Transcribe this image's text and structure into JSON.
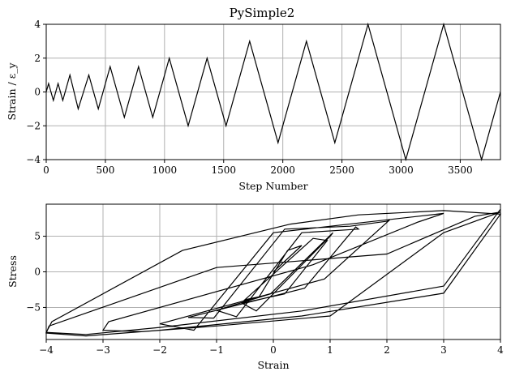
{
  "chart_data": [
    {
      "type": "line",
      "title": "PySimple2",
      "xlabel": "Step Number",
      "ylabel": "Strain / ε_y",
      "xlim": [
        0,
        3840
      ],
      "ylim": [
        -4,
        4
      ],
      "xticks": [
        0,
        500,
        1000,
        1500,
        2000,
        2500,
        3000,
        3500
      ],
      "yticks": [
        -4,
        -2,
        0,
        2,
        4
      ],
      "grid": true,
      "series": [
        {
          "x": [
            0,
            20,
            60,
            100,
            140,
            200,
            270,
            360,
            440,
            540,
            660,
            780,
            900,
            1040,
            1200,
            1360,
            1520,
            1720,
            1960,
            2200,
            2440,
            2720,
            3040,
            3360,
            3680,
            3840
          ],
          "y": [
            0,
            0.5,
            -0.5,
            0.5,
            -0.5,
            1.0,
            -1.0,
            1.0,
            -1.0,
            1.5,
            -1.5,
            1.5,
            -1.5,
            2.0,
            -2.0,
            2.0,
            -2.0,
            3.0,
            -3.0,
            3.0,
            -3.0,
            4.0,
            -4.0,
            4.0,
            -4.0,
            0.0
          ]
        }
      ]
    },
    {
      "type": "line",
      "title": "",
      "xlabel": "Strain",
      "ylabel": "Stress",
      "xlim": [
        -4,
        4
      ],
      "ylim": [
        -9.5,
        9.5
      ],
      "xticks": [
        -4,
        -3,
        -2,
        -1,
        0,
        1,
        2,
        3,
        4
      ],
      "yticks": [
        -5,
        0,
        5
      ],
      "grid": true,
      "series": [
        {
          "x": [
            0,
            0.5,
            0.25,
            -0.25,
            -0.5,
            0.7,
            0.95,
            0.2,
            -0.55,
            -0.3,
            1.0,
            1.05,
            -0.05,
            -1.0,
            -0.65,
            0.5,
            1.5,
            1.45,
            0.55,
            -1.5,
            -1.05,
            0.2,
            1.35,
            2.0,
            2.05,
            0.9,
            -2.0,
            -1.4,
            0.0,
            2.0,
            3.0,
            2.55,
            0.7,
            -2.9,
            -3.0,
            -2.3,
            -1.0,
            1.0,
            3.0,
            4.0,
            3.55,
            2.0,
            -1.0,
            -3.95,
            -4.0,
            -3.3,
            -2.0,
            0.5,
            3.0,
            4.0,
            3.0,
            1.5,
            0.3,
            -1.6,
            -3.9,
            -4.0,
            -3.3,
            -2.0,
            0.5,
            3.0,
            4.0
          ],
          "y": [
            0,
            3.7,
            3.0,
            -3.5,
            -3.9,
            4.7,
            4.4,
            -3.1,
            -4.4,
            -5.5,
            5.0,
            5.5,
            -3.1,
            -5.4,
            -6.3,
            5.5,
            6.0,
            6.3,
            -2.3,
            -6.4,
            -6.5,
            6.0,
            6.4,
            7.1,
            7.3,
            -1.0,
            -7.3,
            -8.2,
            5.5,
            7.3,
            8.2,
            7.0,
            1.0,
            -7.0,
            -8.2,
            -8.4,
            -7.6,
            -6.2,
            5.5,
            8.4,
            7.8,
            2.5,
            0.6,
            -7.6,
            -8.6,
            -9.0,
            -8.2,
            -6.2,
            -3.0,
            8.1,
            8.6,
            8.0,
            6.7,
            3.0,
            -7.0,
            -8.5,
            -8.8,
            -7.8,
            -5.5,
            -2.0,
            8.8
          ]
        }
      ]
    }
  ]
}
